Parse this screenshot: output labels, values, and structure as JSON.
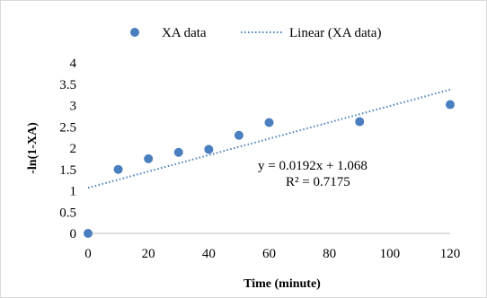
{
  "chart_data": {
    "type": "scatter",
    "title": "",
    "xlabel": "Time (minute)",
    "ylabel": "-ln(1-XA)",
    "xlim": [
      0,
      120
    ],
    "ylim": [
      0,
      4
    ],
    "xticks": [
      0,
      20,
      40,
      60,
      80,
      100,
      120
    ],
    "yticks": [
      0,
      0.5,
      1,
      1.5,
      2,
      2.5,
      3,
      3.5,
      4
    ],
    "grid": false,
    "legend_position": "top",
    "series": [
      {
        "name": "XA data",
        "kind": "points",
        "color": "#4a7fbf",
        "x": [
          0,
          10,
          20,
          30,
          40,
          50,
          60,
          90,
          120
        ],
        "y": [
          0,
          1.5,
          1.75,
          1.9,
          1.97,
          2.3,
          2.6,
          2.62,
          3.02
        ]
      },
      {
        "name": "Linear (XA data)",
        "kind": "trendline",
        "style": "dotted",
        "color": "#4a7fbf",
        "slope": 0.0192,
        "intercept": 1.068,
        "x_range": [
          0,
          120
        ]
      }
    ],
    "annotations": {
      "equation": "y = 0.0192x + 1.068",
      "r_squared": "R² = 0.7175"
    }
  }
}
